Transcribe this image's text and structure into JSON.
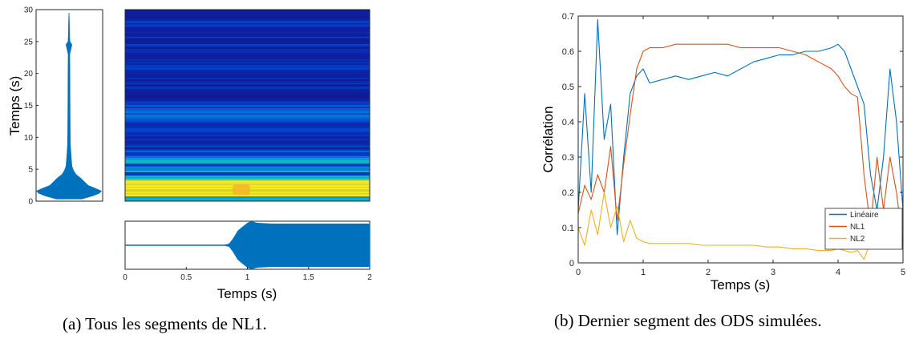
{
  "colors": {
    "linear": "#0072BD",
    "nl1": "#D95319",
    "nl2": "#EDB120",
    "envelope": "#0072BD",
    "heatmap_low": "#00008f",
    "heatmap_high": "#ffff00"
  },
  "panel_a": {
    "caption": "(a) Tous les segments de NL1.",
    "envelope_plot": {
      "ylabel": "Temps (s)",
      "ylim": [
        0,
        30
      ],
      "yticks": [
        0,
        5,
        10,
        15,
        20,
        25,
        30
      ]
    },
    "spectrogram": {
      "type": "heatmap",
      "colormap": "parula",
      "xlim": [
        0,
        2
      ],
      "ylim": [
        0,
        30
      ]
    },
    "signal_plot": {
      "xlabel": "Temps (s)",
      "xlim": [
        0,
        2
      ],
      "xticks": [
        "0",
        "0.5",
        "1",
        "1.5",
        "2"
      ]
    }
  },
  "chart_data": {
    "type": "line",
    "caption": "(b) Dernier segment des ODS simulées.",
    "xlabel": "Temps (s)",
    "ylabel": "Corrélation",
    "xlim": [
      0,
      5
    ],
    "ylim": [
      0,
      0.7
    ],
    "xticks": [
      "0",
      "1",
      "2",
      "3",
      "4",
      "5"
    ],
    "yticks": [
      "0",
      "0.1",
      "0.2",
      "0.3",
      "0.4",
      "0.5",
      "0.6",
      "0.7"
    ],
    "legend_position": "bottom-right",
    "series": [
      {
        "name": "Linéaire",
        "color": "#0072BD",
        "x": [
          0,
          0.1,
          0.2,
          0.3,
          0.4,
          0.5,
          0.6,
          0.7,
          0.8,
          0.9,
          1.0,
          1.1,
          1.3,
          1.5,
          1.7,
          1.9,
          2.1,
          2.3,
          2.5,
          2.7,
          2.9,
          3.1,
          3.3,
          3.5,
          3.7,
          3.9,
          4.0,
          4.1,
          4.2,
          4.3,
          4.4,
          4.5,
          4.6,
          4.7,
          4.8,
          4.9,
          5.0
        ],
        "y": [
          0.15,
          0.48,
          0.2,
          0.69,
          0.35,
          0.45,
          0.08,
          0.3,
          0.48,
          0.53,
          0.55,
          0.51,
          0.52,
          0.53,
          0.52,
          0.53,
          0.54,
          0.53,
          0.55,
          0.57,
          0.58,
          0.59,
          0.59,
          0.6,
          0.6,
          0.61,
          0.62,
          0.6,
          0.55,
          0.5,
          0.45,
          0.25,
          0.15,
          0.3,
          0.55,
          0.4,
          0.15
        ]
      },
      {
        "name": "NL1",
        "color": "#D95319",
        "x": [
          0,
          0.1,
          0.2,
          0.3,
          0.4,
          0.5,
          0.6,
          0.7,
          0.8,
          0.9,
          1.0,
          1.1,
          1.3,
          1.5,
          1.7,
          1.9,
          2.1,
          2.3,
          2.5,
          2.7,
          2.9,
          3.1,
          3.3,
          3.5,
          3.7,
          3.9,
          4.0,
          4.1,
          4.2,
          4.3,
          4.4,
          4.5,
          4.6,
          4.7,
          4.8,
          4.9,
          5.0
        ],
        "y": [
          0.14,
          0.22,
          0.18,
          0.25,
          0.2,
          0.33,
          0.12,
          0.28,
          0.42,
          0.55,
          0.6,
          0.61,
          0.61,
          0.62,
          0.62,
          0.62,
          0.62,
          0.62,
          0.61,
          0.61,
          0.61,
          0.61,
          0.6,
          0.59,
          0.57,
          0.55,
          0.53,
          0.5,
          0.48,
          0.47,
          0.25,
          0.1,
          0.3,
          0.15,
          0.3,
          0.2,
          0.05
        ]
      },
      {
        "name": "NL2",
        "color": "#EDB120",
        "x": [
          0,
          0.1,
          0.2,
          0.3,
          0.4,
          0.5,
          0.6,
          0.7,
          0.8,
          0.9,
          1.0,
          1.1,
          1.3,
          1.5,
          1.7,
          1.9,
          2.1,
          2.3,
          2.5,
          2.7,
          2.9,
          3.1,
          3.3,
          3.5,
          3.7,
          3.9,
          4.0,
          4.1,
          4.2,
          4.3,
          4.4,
          4.5,
          4.6,
          4.7,
          4.8,
          4.9,
          5.0
        ],
        "y": [
          0.1,
          0.05,
          0.15,
          0.08,
          0.2,
          0.1,
          0.16,
          0.06,
          0.12,
          0.07,
          0.06,
          0.055,
          0.055,
          0.055,
          0.055,
          0.05,
          0.05,
          0.05,
          0.05,
          0.05,
          0.045,
          0.045,
          0.04,
          0.04,
          0.035,
          0.035,
          0.04,
          0.035,
          0.03,
          0.035,
          0.01,
          0.06,
          0.1,
          0.05,
          0.08,
          0.12,
          0.05
        ]
      }
    ]
  }
}
